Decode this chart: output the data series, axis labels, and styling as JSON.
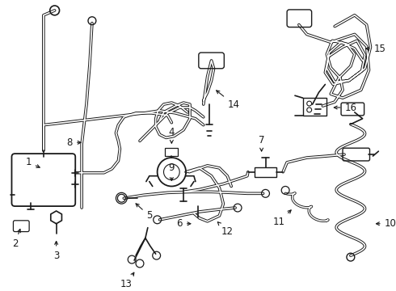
{
  "bg_color": "#ffffff",
  "line_color": "#1a1a1a",
  "lw": 1.3,
  "lw_thin": 0.9,
  "tube_outer": 2.8,
  "tube_inner": 1.4,
  "fontsize": 8.5
}
